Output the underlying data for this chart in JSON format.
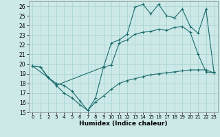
{
  "xlabel": "Humidex (Indice chaleur)",
  "background_color": "#cce9e8",
  "grid_color": "#aad4d3",
  "line_color": "#1a6b6b",
  "xlim": [
    -0.5,
    23.5
  ],
  "ylim": [
    15,
    26.5
  ],
  "yticks": [
    15,
    16,
    17,
    18,
    19,
    20,
    21,
    22,
    23,
    24,
    25,
    26
  ],
  "xticks": [
    0,
    1,
    2,
    3,
    4,
    5,
    6,
    7,
    8,
    9,
    10,
    11,
    12,
    13,
    14,
    15,
    16,
    17,
    18,
    19,
    20,
    21,
    22,
    23
  ],
  "line1_x": [
    0,
    1,
    2,
    3,
    4,
    5,
    6,
    7,
    8,
    9,
    10,
    11,
    12,
    13,
    14,
    15,
    16,
    17,
    18,
    19,
    20,
    21,
    22,
    23
  ],
  "line1_y": [
    19.8,
    19.7,
    18.6,
    18.0,
    17.8,
    17.2,
    16.2,
    15.2,
    16.1,
    16.7,
    17.4,
    18.0,
    18.3,
    18.5,
    18.7,
    18.9,
    19.0,
    19.1,
    19.2,
    19.3,
    19.4,
    19.4,
    19.4,
    19.1
  ],
  "line2_x": [
    0,
    1,
    2,
    3,
    4,
    5,
    6,
    7,
    8,
    9,
    10,
    11,
    12,
    13,
    14,
    15,
    16,
    17,
    18,
    19,
    20,
    21,
    22,
    23
  ],
  "line2_y": [
    19.8,
    19.7,
    18.6,
    17.8,
    17.0,
    16.5,
    15.8,
    15.2,
    16.5,
    19.7,
    19.9,
    22.2,
    22.5,
    23.1,
    23.3,
    23.4,
    23.6,
    23.5,
    23.8,
    23.9,
    23.3,
    21.0,
    19.2,
    19.1
  ],
  "line3_x": [
    0,
    2,
    3,
    9,
    10,
    11,
    12,
    13,
    14,
    15,
    16,
    17,
    18,
    19,
    20,
    21,
    22,
    23
  ],
  "line3_y": [
    19.8,
    18.6,
    17.8,
    19.7,
    22.2,
    22.5,
    23.1,
    25.9,
    26.2,
    25.2,
    26.2,
    25.0,
    24.8,
    25.7,
    23.9,
    23.2,
    25.7,
    19.2
  ]
}
